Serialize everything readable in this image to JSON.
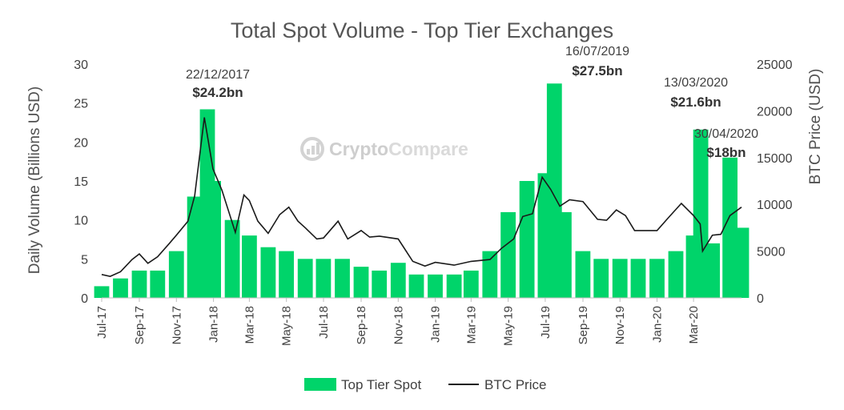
{
  "chart_data": {
    "type": "bar",
    "title": "Total Spot Volume - Top Tier Exchanges",
    "watermark": {
      "part1": "Crypto",
      "part2": "Compare",
      "icon": "cryptocompare-logo-icon"
    },
    "y_left": {
      "label": "Daily Volume (Billions USD)",
      "ylim": [
        0,
        30
      ],
      "ticks": [
        "0",
        "5",
        "10",
        "15",
        "20",
        "25",
        "30"
      ]
    },
    "y_right": {
      "label": "BTC Price (USD)",
      "ylim": [
        0,
        25000
      ],
      "ticks": [
        "0",
        "5000",
        "10000",
        "15000",
        "20000",
        "25000"
      ]
    },
    "x_ticks": [
      "Jul-17",
      "Sep-17",
      "Nov-17",
      "Jan-18",
      "Mar-18",
      "May-18",
      "Jul-18",
      "Sep-18",
      "Nov-18",
      "Jan-19",
      "Mar-19",
      "May-19",
      "Jul-19",
      "Sep-19",
      "Nov-19",
      "Jan-20",
      "Mar-20"
    ],
    "x_range": [
      "2017-07-01",
      "2020-05-19"
    ],
    "series": [
      {
        "name": "Top Tier Spot",
        "kind": "bar",
        "color": "#00d46a",
        "x": [
          "2017-07-01",
          "2017-08-01",
          "2017-09-01",
          "2017-10-01",
          "2017-11-01",
          "2017-12-01",
          "2017-12-22",
          "2018-01-01",
          "2018-02-01",
          "2018-03-01",
          "2018-04-01",
          "2018-05-01",
          "2018-06-01",
          "2018-07-01",
          "2018-08-01",
          "2018-09-01",
          "2018-10-01",
          "2018-11-01",
          "2018-12-01",
          "2019-01-01",
          "2019-02-01",
          "2019-03-01",
          "2019-04-01",
          "2019-05-01",
          "2019-06-01",
          "2019-07-01",
          "2019-07-16",
          "2019-08-01",
          "2019-09-01",
          "2019-10-01",
          "2019-11-01",
          "2019-12-01",
          "2020-01-01",
          "2020-02-01",
          "2020-03-01",
          "2020-03-13",
          "2020-04-01",
          "2020-04-30",
          "2020-05-19"
        ],
        "values": [
          1.5,
          2.5,
          3.5,
          3.5,
          6,
          13,
          24.2,
          15,
          10,
          8,
          6.5,
          6,
          5,
          5,
          5,
          4,
          3.5,
          4.5,
          3,
          3,
          3,
          3.5,
          6,
          11,
          15,
          16,
          27.5,
          11,
          6,
          5,
          5,
          5,
          5,
          6,
          8,
          21.6,
          7,
          18,
          9
        ]
      },
      {
        "name": "BTC Price",
        "kind": "line",
        "color": "#1a1a1a",
        "x": [
          "2017-07-01",
          "2017-07-15",
          "2017-08-01",
          "2017-08-20",
          "2017-09-01",
          "2017-09-15",
          "2017-10-01",
          "2017-10-20",
          "2017-11-01",
          "2017-11-20",
          "2017-12-01",
          "2017-12-17",
          "2017-12-31",
          "2018-01-15",
          "2018-02-06",
          "2018-02-20",
          "2018-03-01",
          "2018-03-15",
          "2018-04-01",
          "2018-04-20",
          "2018-05-05",
          "2018-05-20",
          "2018-06-01",
          "2018-06-20",
          "2018-07-01",
          "2018-07-25",
          "2018-08-10",
          "2018-09-01",
          "2018-09-15",
          "2018-10-01",
          "2018-11-01",
          "2018-11-25",
          "2018-12-15",
          "2019-01-01",
          "2019-02-01",
          "2019-03-01",
          "2019-04-01",
          "2019-04-20",
          "2019-05-10",
          "2019-05-25",
          "2019-06-10",
          "2019-06-26",
          "2019-07-10",
          "2019-07-25",
          "2019-08-10",
          "2019-09-01",
          "2019-09-25",
          "2019-10-10",
          "2019-10-26",
          "2019-11-10",
          "2019-11-25",
          "2019-12-15",
          "2020-01-01",
          "2020-01-20",
          "2020-02-10",
          "2020-03-01",
          "2020-03-12",
          "2020-03-16",
          "2020-04-01",
          "2020-04-15",
          "2020-04-30",
          "2020-05-19"
        ],
        "values": [
          2500,
          2300,
          2800,
          4100,
          4700,
          3700,
          4400,
          5800,
          6700,
          8200,
          10900,
          19300,
          13800,
          11500,
          7000,
          11000,
          10400,
          8200,
          6900,
          8900,
          9700,
          8200,
          7500,
          6300,
          6400,
          8200,
          6300,
          7200,
          6500,
          6600,
          6300,
          3900,
          3400,
          3800,
          3500,
          3900,
          4100,
          5300,
          6300,
          8700,
          9000,
          12900,
          11600,
          9800,
          10500,
          10300,
          8400,
          8300,
          9400,
          8800,
          7200,
          7200,
          7200,
          8600,
          10100,
          8800,
          7900,
          5000,
          6700,
          6800,
          8800,
          9700
        ]
      }
    ],
    "annotations": [
      {
        "date": "22/12/2017",
        "value": "$24.2bn"
      },
      {
        "date": "16/07/2019",
        "value": "$27.5bn"
      },
      {
        "date": "13/03/2020",
        "value": "$21.6bn"
      },
      {
        "date": "30/04/2020",
        "value": "$18bn"
      }
    ],
    "legend": {
      "placement": "bottom-center",
      "items": [
        "Top Tier Spot",
        "BTC Price"
      ]
    },
    "grid": false
  }
}
